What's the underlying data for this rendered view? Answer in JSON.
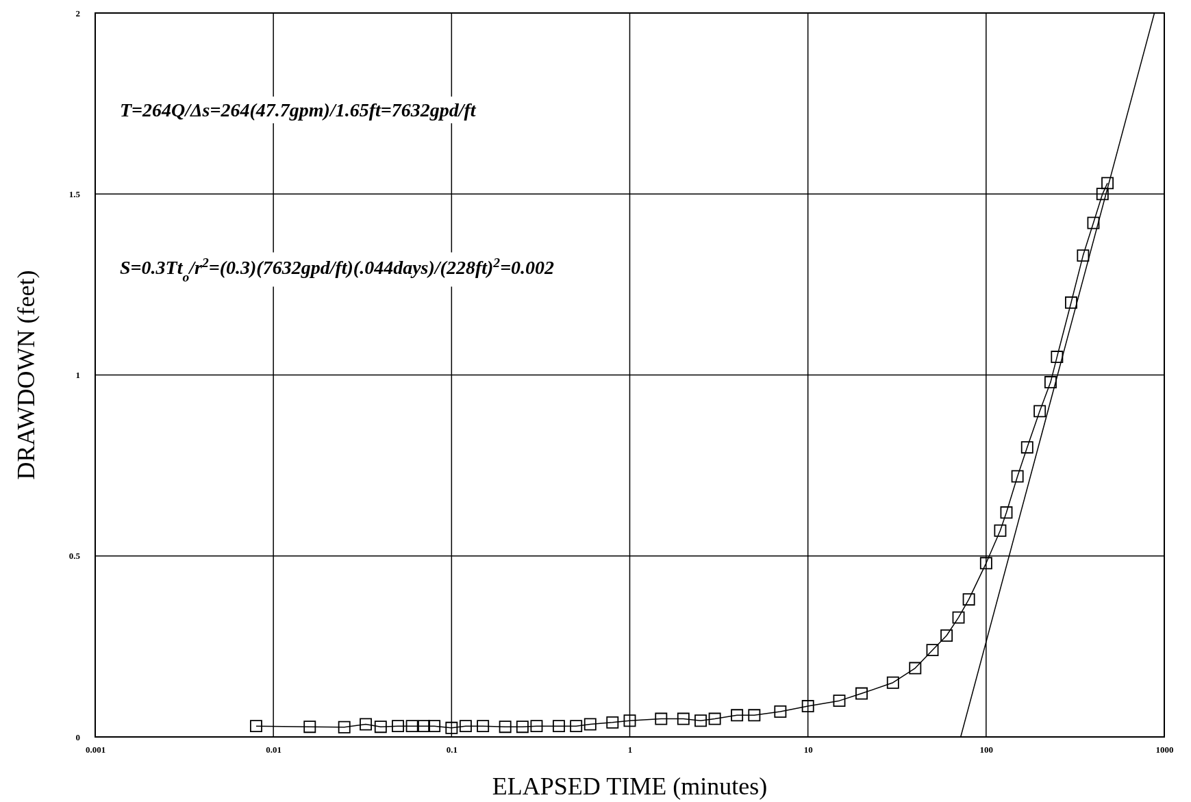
{
  "chart_data": {
    "type": "line",
    "xlabel": "ELAPSED TIME (minutes)",
    "ylabel": "DRAWDOWN (feet)",
    "log": "x",
    "grid": true,
    "marker": "square",
    "line_style": "solid",
    "xlim": [
      0.001,
      1000
    ],
    "xticks": [
      0.001,
      0.01,
      0.1,
      1,
      10,
      100,
      1000
    ],
    "ylim": [
      0,
      2
    ],
    "yticks": [
      0,
      0.5,
      1,
      1.5,
      2
    ],
    "series": [
      {
        "color": "#000000",
        "x": [
          0.008,
          0.016,
          0.025,
          0.033,
          0.04,
          0.05,
          0.06,
          0.07,
          0.08,
          0.1,
          0.12,
          0.15,
          0.2,
          0.25,
          0.3,
          0.4,
          0.5,
          0.6,
          0.8,
          1,
          1.5,
          2,
          2.5,
          3,
          4,
          5,
          7,
          10,
          15,
          20,
          30,
          40,
          50,
          60,
          70,
          80,
          100,
          120,
          130,
          150,
          170,
          200,
          230,
          250,
          300,
          350,
          400,
          450,
          480
        ],
        "values": [
          0.03,
          0.028,
          0.027,
          0.035,
          0.028,
          0.03,
          0.03,
          0.03,
          0.03,
          0.025,
          0.03,
          0.03,
          0.028,
          0.028,
          0.03,
          0.03,
          0.03,
          0.035,
          0.04,
          0.045,
          0.05,
          0.05,
          0.045,
          0.05,
          0.06,
          0.06,
          0.07,
          0.085,
          0.1,
          0.12,
          0.15,
          0.19,
          0.24,
          0.28,
          0.33,
          0.38,
          0.48,
          0.57,
          0.62,
          0.72,
          0.8,
          0.9,
          0.98,
          1.05,
          1.2,
          1.33,
          1.42,
          1.5,
          1.53
        ]
      },
      {
        "color": "#000000",
        "type": "line",
        "marker": "none",
        "x": [
          72,
          880
        ],
        "values": [
          0,
          2
        ]
      }
    ],
    "annotations": [
      "T=264Q/Δs=264(47.7gpm)/1.65ft=7632gpd/ft",
      "S=0.3Tt$_{o}$/r$^{2}$=(0.3)(7632gpd/ft)(.044days)/(228ft)$^{2}$=0.002"
    ]
  }
}
